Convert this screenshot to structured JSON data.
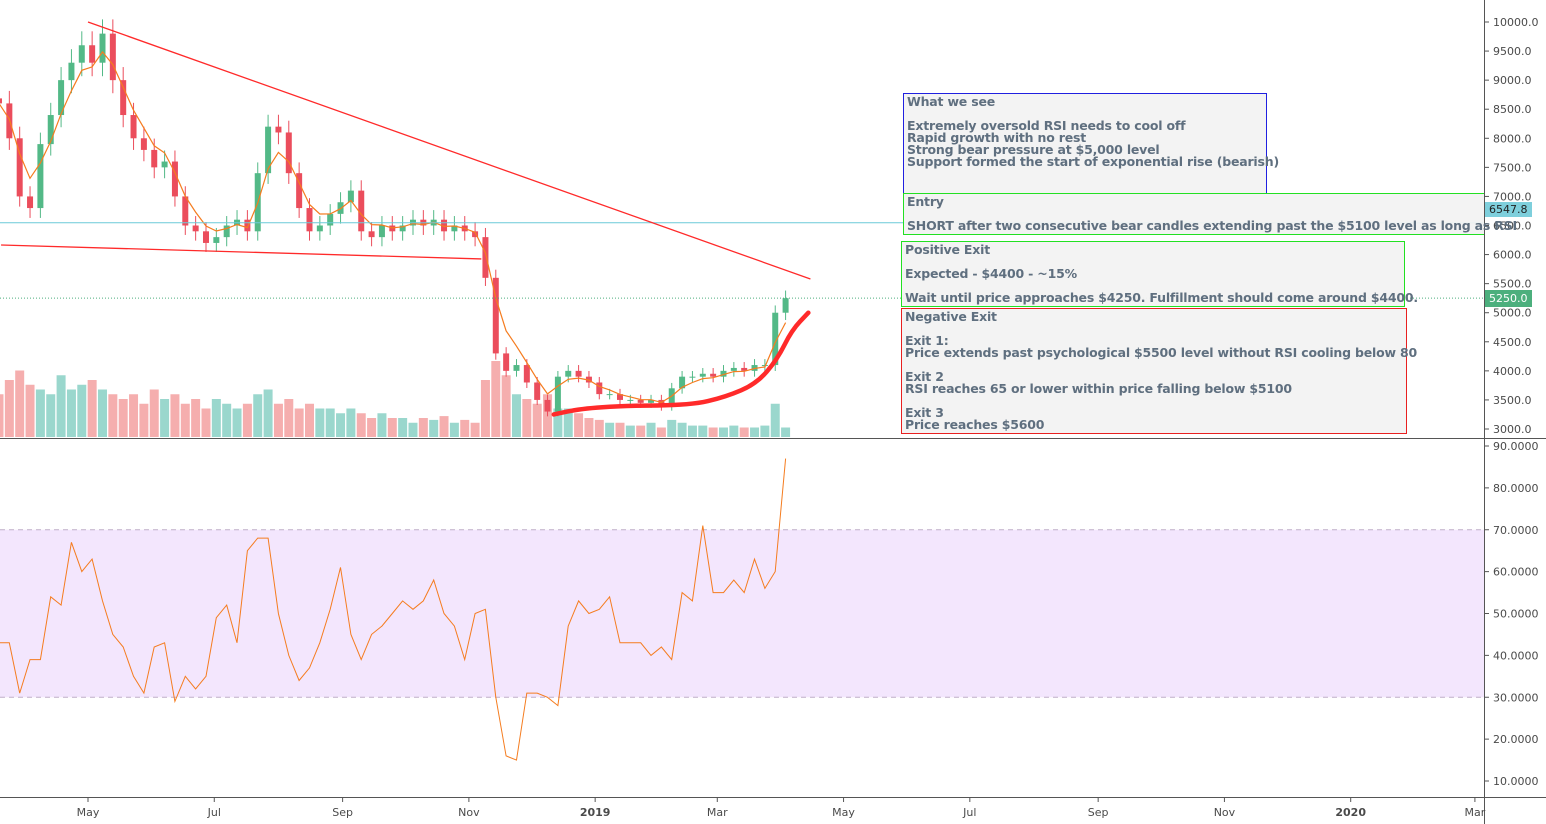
{
  "colors": {
    "up": "#53b987",
    "down": "#eb4d5c",
    "ma": "#f57c1f",
    "rsi": "#f57c1f",
    "rsi_band": "#f3e6fd",
    "trendline": "#ff2a2a",
    "hline": "#6ccad8",
    "last_price": "#4caf7d"
  },
  "chart_data": [
    {
      "type": "candlestick",
      "price_axis": {
        "ylim": [
          3000,
          10000
        ],
        "ticks": [
          "3000.0",
          "3500.0",
          "4000.0",
          "4500.0",
          "5000.0",
          "5500.0",
          "6000.0",
          "6500.0",
          "7000.0",
          "7500.0",
          "8000.0",
          "8500.0",
          "9000.0",
          "9500.0",
          "10000.0"
        ]
      },
      "time_axis": {
        "ticks": [
          {
            "label": "May",
            "date": "2018-05-01"
          },
          {
            "label": "Jul",
            "date": "2018-07-01"
          },
          {
            "label": "Sep",
            "date": "2018-09-01"
          },
          {
            "label": "Nov",
            "date": "2018-11-01"
          },
          {
            "label": "2019",
            "date": "2019-01-01",
            "bold": true
          },
          {
            "label": "Mar",
            "date": "2019-03-01"
          },
          {
            "label": "May",
            "date": "2019-05-01"
          },
          {
            "label": "Jul",
            "date": "2019-07-01"
          },
          {
            "label": "Sep",
            "date": "2019-09-01"
          },
          {
            "label": "Nov",
            "date": "2019-11-01"
          },
          {
            "label": "2020",
            "date": "2020-01-01",
            "bold": true
          },
          {
            "label": "Mar",
            "date": "2020-03-01"
          }
        ]
      },
      "dates": [
        "2018-03-19",
        "2018-03-24",
        "2018-03-29",
        "2018-04-03",
        "2018-04-08",
        "2018-04-13",
        "2018-04-18",
        "2018-04-23",
        "2018-04-28",
        "2018-05-03",
        "2018-05-08",
        "2018-05-13",
        "2018-05-18",
        "2018-05-23",
        "2018-05-28",
        "2018-06-02",
        "2018-06-07",
        "2018-06-12",
        "2018-06-17",
        "2018-06-22",
        "2018-06-27",
        "2018-07-02",
        "2018-07-07",
        "2018-07-12",
        "2018-07-17",
        "2018-07-22",
        "2018-07-27",
        "2018-08-01",
        "2018-08-06",
        "2018-08-11",
        "2018-08-16",
        "2018-08-21",
        "2018-08-26",
        "2018-08-31",
        "2018-09-05",
        "2018-09-10",
        "2018-09-15",
        "2018-09-20",
        "2018-09-25",
        "2018-09-30",
        "2018-10-05",
        "2018-10-10",
        "2018-10-15",
        "2018-10-20",
        "2018-10-25",
        "2018-10-30",
        "2018-11-04",
        "2018-11-09",
        "2018-11-14",
        "2018-11-19",
        "2018-11-24",
        "2018-11-29",
        "2018-12-04",
        "2018-12-09",
        "2018-12-14",
        "2018-12-19",
        "2018-12-24",
        "2018-12-29",
        "2019-01-03",
        "2019-01-08",
        "2019-01-13",
        "2019-01-18",
        "2019-01-23",
        "2019-01-28",
        "2019-02-02",
        "2019-02-07",
        "2019-02-12",
        "2019-02-17",
        "2019-02-22",
        "2019-02-27",
        "2019-03-04",
        "2019-03-09",
        "2019-03-14",
        "2019-03-19",
        "2019-03-24",
        "2019-03-29",
        "2019-04-03"
      ],
      "close": [
        8600,
        8000,
        7000,
        6800,
        7900,
        8400,
        9000,
        9300,
        9600,
        9300,
        9800,
        9000,
        8400,
        8000,
        7800,
        7500,
        7600,
        7000,
        6500,
        6400,
        6200,
        6300,
        6500,
        6600,
        6400,
        7400,
        8200,
        8100,
        7400,
        6800,
        6400,
        6500,
        6700,
        6900,
        7100,
        6400,
        6300,
        6500,
        6400,
        6500,
        6600,
        6500,
        6600,
        6400,
        6500,
        6400,
        6300,
        5600,
        4300,
        4000,
        4100,
        3800,
        3500,
        3300,
        3900,
        4000,
        3900,
        3800,
        3600,
        3600,
        3500,
        3500,
        3450,
        3500,
        3400,
        3700,
        3900,
        3900,
        3950,
        3900,
        4000,
        4050,
        4000,
        4100,
        4100,
        5000,
        5250
      ],
      "volume": [
        45,
        60,
        70,
        55,
        50,
        45,
        65,
        50,
        55,
        60,
        50,
        45,
        40,
        45,
        35,
        50,
        40,
        45,
        35,
        40,
        30,
        40,
        35,
        30,
        35,
        45,
        50,
        35,
        40,
        30,
        35,
        30,
        30,
        25,
        30,
        25,
        20,
        25,
        20,
        20,
        15,
        20,
        18,
        22,
        15,
        18,
        15,
        60,
        80,
        65,
        45,
        40,
        35,
        45,
        30,
        30,
        25,
        20,
        18,
        15,
        15,
        12,
        12,
        15,
        10,
        18,
        15,
        12,
        12,
        10,
        10,
        12,
        10,
        10,
        12,
        35,
        10
      ],
      "indicators": {
        "ma": "orange moving average of close"
      },
      "horizontal_lines": [
        {
          "price": 6547.8,
          "label": "6547.8",
          "style": "solid",
          "color": "#6ccad8"
        },
        {
          "price": 5250.0,
          "label": "5250.0",
          "style": "dotted",
          "color": "#4caf7d"
        }
      ],
      "trendlines": [
        {
          "from": {
            "date": "2018-05-01",
            "price": 10000
          },
          "to": {
            "date": "2019-04-15",
            "price": 5580
          }
        },
        {
          "from": {
            "date": "2018-03-20",
            "price": 6165
          },
          "to": {
            "date": "2018-11-07",
            "price": 5925
          }
        }
      ],
      "curve_drawing": [
        {
          "date": "2018-12-12",
          "price": 3250
        },
        {
          "date": "2018-12-25",
          "price": 3350
        },
        {
          "date": "2019-01-15",
          "price": 3400
        },
        {
          "date": "2019-02-16",
          "price": 3410
        },
        {
          "date": "2019-03-05",
          "price": 3550
        },
        {
          "date": "2019-03-20",
          "price": 3780
        },
        {
          "date": "2019-03-30",
          "price": 4200
        },
        {
          "date": "2019-04-06",
          "price": 4700
        },
        {
          "date": "2019-04-14",
          "price": 5000
        }
      ]
    },
    {
      "type": "line",
      "series": [
        {
          "values": [
            43,
            43,
            31,
            39,
            39,
            54,
            52,
            67,
            60,
            63,
            53,
            45,
            42,
            35,
            31,
            42,
            43,
            29,
            35,
            32,
            35,
            49,
            52,
            43,
            65,
            68,
            68,
            50,
            40,
            34,
            37,
            43,
            51,
            61,
            45,
            39,
            45,
            47,
            50,
            53,
            51,
            53,
            58,
            50,
            47,
            39,
            50,
            51,
            30,
            16,
            15,
            31,
            31,
            30,
            28,
            47,
            53,
            50,
            51,
            54,
            43,
            43,
            43,
            40,
            42,
            39,
            55,
            53,
            71,
            55,
            55,
            58,
            55,
            63,
            56,
            60,
            87
          ]
        }
      ],
      "ylim": [
        6,
        94
      ],
      "band": [
        30,
        70
      ],
      "ticks": [
        "10.0000",
        "20.0000",
        "30.0000",
        "40.0000",
        "50.0000",
        "60.0000",
        "70.0000",
        "80.0000",
        "90.0000"
      ]
    }
  ],
  "notes": {
    "what_we_see": {
      "title": "What we see",
      "lines": [
        "Extremely oversold RSI needs to cool off",
        "Rapid growth with no rest",
        "Strong bear pressure at $5,000 level",
        "Support formed the start of exponential rise (bearish)"
      ]
    },
    "entry": {
      "title": "Entry",
      "text": "SHORT after two consecutive bear candles extending past the $5100 level as long as RSI"
    },
    "positive_exit": {
      "title": "Positive Exit",
      "expected": "Expected - $4400 - ~15%",
      "text": "Wait until price approaches $4250. Fulfillment should come around $4400."
    },
    "negative_exit": {
      "title": "Negative Exit",
      "exit1_title": "Exit 1:",
      "exit1": "Price extends past psychological $5500 level without RSI cooling below 80",
      "exit2_title": "Exit 2",
      "exit2": "RSI reaches 65 or lower within price falling below $5100",
      "exit3_title": "Exit 3",
      "exit3": "Price reaches $5600"
    }
  },
  "badges": {
    "hline": "6547.8",
    "last_price": "5250.0"
  }
}
